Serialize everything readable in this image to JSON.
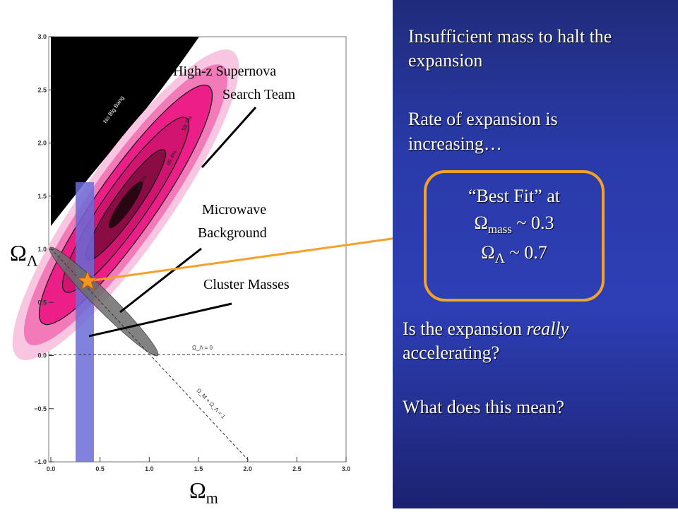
{
  "slide": {
    "text1_line1": "Insufficient  mass  to halt the",
    "text1_line2": "expansion",
    "text2_line1": "Rate of expansion  is",
    "text2_line2": "increasing…",
    "best_fit": {
      "line1": "“Best Fit” at",
      "mass_symbol": "Ω",
      "mass_sub": "mass",
      "mass_value": " ~ 0.3",
      "lambda_symbol": "Ω",
      "lambda_sub": "Λ",
      "lambda_value": " ~ 0.7"
    },
    "question1_pre": "Is the expansion  ",
    "question1_em": "really",
    "question1_line2": "accelerating?",
    "question2": "What does this mean?"
  },
  "plot_labels": {
    "supernova_line1": "High-z Supernova",
    "supernova_line2": "Search Team",
    "microwave_line1": "Microwave",
    "microwave_line2": "Background",
    "cluster": "Cluster Masses",
    "ylabel_symbol": "Ω",
    "ylabel_sub": "Λ",
    "xlabel_symbol": "Ω",
    "xlabel_sub": "m",
    "no_big_bang": "No Big Bang",
    "zero_lambda": "Ω_Λ = 0",
    "flat_line": "Ω_M + Ω_Λ = 1"
  },
  "colors": {
    "accent": "#f4a12a",
    "panel_blue": "#2e3fb6",
    "supernova_pink": "#ee1b8a",
    "cluster_band": "#6b6bd8"
  },
  "chart_data": {
    "type": "scatter",
    "xlabel": "Ωm",
    "ylabel": "ΩΛ",
    "xlim": [
      0.0,
      3.0
    ],
    "ylim": [
      -1.0,
      3.0
    ],
    "xticks": [
      "0.0",
      "0.5",
      "1.0",
      "1.5",
      "2.0",
      "2.5",
      "3.0"
    ],
    "yticks": [
      "−1.0",
      "−0.5",
      "0.0",
      "0.5",
      "1.0",
      "1.5",
      "2.0",
      "2.5",
      "3.0"
    ],
    "contour_labels": [
      "68.3%",
      "95.4%",
      "99.7%"
    ],
    "best_fit_point": {
      "x": 0.3,
      "y": 0.7
    },
    "supernova_center": {
      "x": 0.7,
      "y": 1.4
    },
    "cluster_band": {
      "x_min": 0.23,
      "x_max": 0.42,
      "y_min": -1.0,
      "y_max": 1.65
    },
    "cmb_ellipse": {
      "from": {
        "x": 0.0,
        "y": 1.0
      },
      "to": {
        "x": 1.0,
        "y": 0.0
      }
    },
    "flat_line": {
      "from": {
        "x": 0.0,
        "y": 1.0
      },
      "to": {
        "x": 2.0,
        "y": -1.0
      }
    }
  }
}
